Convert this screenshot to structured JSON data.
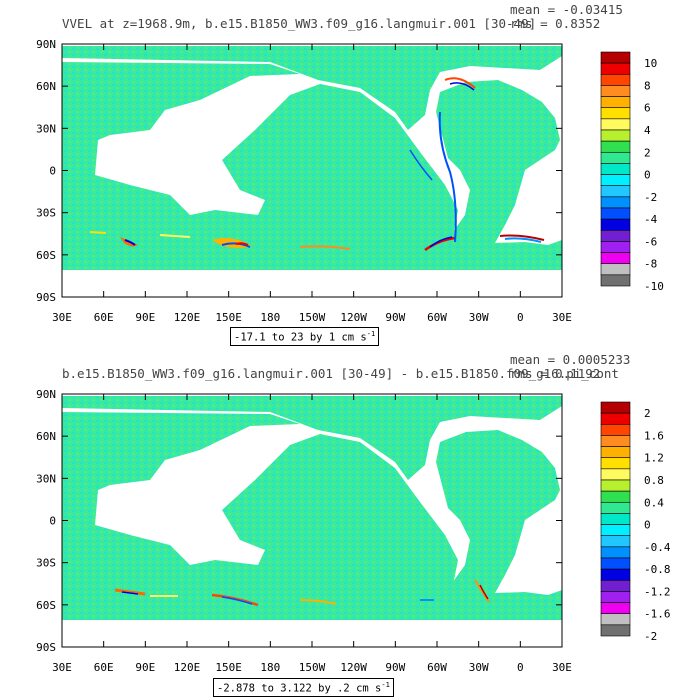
{
  "panels": [
    {
      "title": "VVEL at z=1968.9m, b.e15.B1850_WW3.f09_g16.langmuir.001 [30-49]",
      "mean_text": "mean = -0.03415",
      "rms_text": "rms = 0.8352",
      "contour_info": "-17.1 to 23 by 1 cm s",
      "contour_info_sup": "-1",
      "lat_ticks": [
        "90N",
        "60N",
        "30N",
        "0",
        "30S",
        "60S",
        "90S"
      ],
      "lon_ticks": [
        "30E",
        "60E",
        "90E",
        "120E",
        "150E",
        "180",
        "150W",
        "120W",
        "90W",
        "60W",
        "30W",
        "0",
        "30E"
      ],
      "colorbar_labels": [
        "10",
        "8",
        "6",
        "4",
        "2",
        "0",
        "-2",
        "-4",
        "-6",
        "-8",
        "-10"
      ],
      "colors": [
        "#b40000",
        "#ee0000",
        "#ff4500",
        "#ff8c20",
        "#ffb000",
        "#ffe000",
        "#fffa60",
        "#b8f030",
        "#30e050",
        "#30e890",
        "#00e8c8",
        "#00f0ff",
        "#20c8ff",
        "#0090ff",
        "#0050ff",
        "#0000e0",
        "#7020d0",
        "#a020f0",
        "#f000f0",
        "#c0c0c0",
        "#707070"
      ]
    },
    {
      "title": "b.e15.B1850_WW3.f09_g16.langmuir.001 [30-49] - b.e15.B1850.f09_g16.pi_cont",
      "mean_text": "mean = 0.0005233",
      "rms_text": "rms = 0.1192",
      "contour_info": "-2.878 to 3.122 by .2 cm s",
      "contour_info_sup": "-1",
      "lat_ticks": [
        "90N",
        "60N",
        "30N",
        "0",
        "30S",
        "60S",
        "90S"
      ],
      "lon_ticks": [
        "30E",
        "60E",
        "90E",
        "120E",
        "150E",
        "180",
        "150W",
        "120W",
        "90W",
        "60W",
        "30W",
        "0",
        "30E"
      ],
      "colorbar_labels": [
        "2",
        "1.6",
        "1.2",
        "0.8",
        "0.4",
        "0",
        "-0.4",
        "-0.8",
        "-1.2",
        "-1.6",
        "-2"
      ],
      "colors": [
        "#b40000",
        "#ee0000",
        "#ff4500",
        "#ff8c20",
        "#ffb000",
        "#ffe000",
        "#fffa60",
        "#b8f030",
        "#30e050",
        "#30e890",
        "#00e8c8",
        "#00f0ff",
        "#20c8ff",
        "#0090ff",
        "#0050ff",
        "#0000e0",
        "#7020d0",
        "#a020f0",
        "#f000f0",
        "#c0c0c0",
        "#707070"
      ]
    }
  ]
}
